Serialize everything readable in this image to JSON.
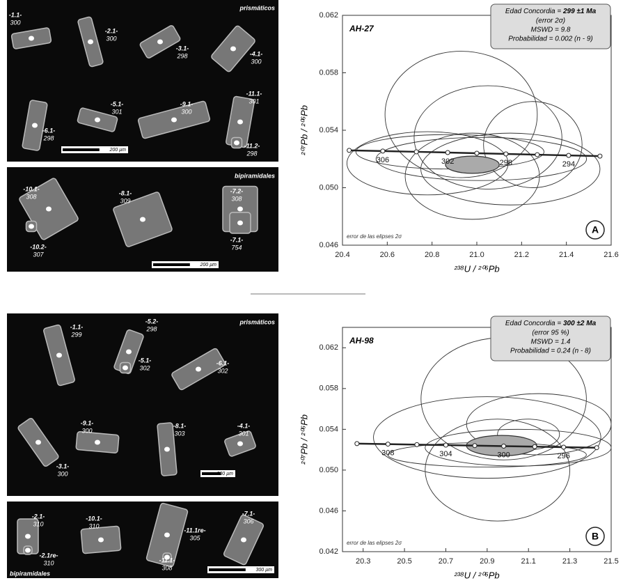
{
  "chart_data": [
    {
      "type": "concordia",
      "sample": "AH-27",
      "panel": "A",
      "note": "error de las elipses 2σ",
      "xlabel": "²³⁸U / ²⁰⁶Pb",
      "ylabel": "²⁰⁷Pb / ²⁰⁶Pb",
      "info": {
        "prefix": "Edad Concordia = ",
        "age": "299 ±1 Ma",
        "lines": [
          "(error 2σ)",
          "MSWD = 9.8",
          "Probabilidad = 0.002 (n - 9)"
        ]
      },
      "xlim": [
        20.4,
        21.6
      ],
      "ylim": [
        0.046,
        0.062
      ],
      "xticks": [
        20.4,
        20.6,
        20.8,
        {
          "value": 21,
          "label": "21.0"
        },
        21.2,
        21.4,
        21.6
      ],
      "yticks": [
        0.046,
        {
          "value": 0.05,
          "label": "0.050"
        },
        0.054,
        0.058,
        0.062
      ],
      "concordia": {
        "x": [
          20.43,
          20.58,
          20.73,
          20.87,
          21.0,
          21.13,
          21.27,
          21.41,
          21.55
        ],
        "y": [
          0.0526,
          0.05255,
          0.0525,
          0.05245,
          0.0524,
          0.05235,
          0.0523,
          0.05225,
          0.0522
        ],
        "ages": [
          null,
          306,
          null,
          302,
          null,
          298,
          null,
          294,
          null
        ]
      },
      "ellipses": {
        "cx": [
          20.93,
          21.05,
          21.02,
          20.78,
          21.15,
          20.98,
          21.25,
          20.88
        ],
        "cy": [
          0.0551,
          0.0535,
          0.052,
          0.0517,
          0.0513,
          0.0508,
          0.053,
          0.0525
        ],
        "rx": [
          0.34,
          0.33,
          0.47,
          0.36,
          0.4,
          0.3,
          0.22,
          0.42
        ],
        "ry": [
          0.0044,
          0.0036,
          0.0015,
          0.0022,
          0.0025,
          0.003,
          0.003,
          0.0012
        ]
      },
      "concordia_ellipse": {
        "cx": 20.98,
        "cy": 0.0516,
        "rx": 0.12,
        "ry": 0.0006
      }
    },
    {
      "type": "concordia",
      "sample": "AH-98",
      "panel": "B",
      "note": "error de las elipses 2σ",
      "xlabel": "²³⁸U / ²⁰⁶Pb",
      "ylabel": "²⁰⁷Pb / ²⁰⁶Pb",
      "info": {
        "prefix": "Edad Concordia = ",
        "age": "300 ±2 Ma",
        "lines": [
          "(error 95 %)",
          "MSWD = 1.4",
          "Probabilidad = 0.24 (n - 8)"
        ]
      },
      "xlim": [
        20.2,
        21.5
      ],
      "ylim": [
        0.042,
        0.064
      ],
      "xticks": [
        20.3,
        20.5,
        20.7,
        20.9,
        21.1,
        21.3,
        21.5
      ],
      "yticks": [
        0.042,
        0.046,
        {
          "value": 0.05,
          "label": "0.050"
        },
        0.054,
        0.058,
        0.062
      ],
      "concordia": {
        "x": [
          20.27,
          20.42,
          20.56,
          20.7,
          20.84,
          20.98,
          21.13,
          21.27,
          21.43
        ],
        "y": [
          0.0526,
          0.05255,
          0.0525,
          0.05245,
          0.0524,
          0.05235,
          0.0523,
          0.05225,
          0.0522
        ],
        "ages": [
          null,
          308,
          null,
          304,
          null,
          300,
          null,
          296,
          null
        ]
      },
      "ellipses": {
        "cx": [
          20.98,
          20.9,
          21.15,
          21.05,
          20.95,
          21.1,
          20.9
        ],
        "cy": [
          0.057,
          0.0532,
          0.0545,
          0.0522,
          0.05,
          0.0535,
          0.0515
        ],
        "rx": [
          0.4,
          0.55,
          0.35,
          0.45,
          0.35,
          0.15,
          0.48
        ],
        "ry": [
          0.006,
          0.004,
          0.003,
          0.0018,
          0.005,
          0.0015,
          0.0012
        ]
      },
      "concordia_ellipse": {
        "cx": 20.97,
        "cy": 0.0524,
        "rx": 0.17,
        "ry": 0.001
      }
    }
  ],
  "images": [
    {
      "title": "prismáticos",
      "scale": "200 µm",
      "grains": [
        {
          "label": "-1.1-",
          "age": 300
        },
        {
          "label": "-2.1-",
          "age": 300
        },
        {
          "label": "-3.1-",
          "age": 298
        },
        {
          "label": "-4.1-",
          "age": 300
        },
        {
          "label": "-5.1-",
          "age": 301
        },
        {
          "label": "-6.1-",
          "age": 298
        },
        {
          "label": "-9.1-",
          "age": 300
        },
        {
          "label": "-11.1-",
          "age": 301
        },
        {
          "label": "-11.2-",
          "age": 298
        }
      ]
    },
    {
      "title": "bipiramidales",
      "scale": "200 µm",
      "grains": [
        {
          "label": "-10.1-",
          "age": 308
        },
        {
          "label": "-8.1-",
          "age": 309
        },
        {
          "label": "-7.2-",
          "age": 308
        },
        {
          "label": "-10.2-",
          "age": 307
        },
        {
          "label": "-7.1-",
          "age": 754
        }
      ]
    },
    {
      "title": "prismáticos",
      "scale": "200 µm",
      "grains": [
        {
          "label": "-1.1-",
          "age": 299
        },
        {
          "label": "-5.2-",
          "age": 298
        },
        {
          "label": "-5.1-",
          "age": 302
        },
        {
          "label": "-6.1-",
          "age": 302
        },
        {
          "label": "-9.1-",
          "age": 300
        },
        {
          "label": "-8.1-",
          "age": 303
        },
        {
          "label": "-4.1-",
          "age": 301
        },
        {
          "label": "-3.1-",
          "age": 300
        }
      ]
    },
    {
      "title": "bipiramidales",
      "scale": "300 µm",
      "grains": [
        {
          "label": "-2.1-",
          "age": 310
        },
        {
          "label": "-2.1re-",
          "age": 310
        },
        {
          "label": "-10.1-",
          "age": 310
        },
        {
          "label": "-11.1re-",
          "age": 305
        },
        {
          "label": "-11.1-",
          "age": 308
        },
        {
          "label": "-7.1-",
          "age": 306
        }
      ]
    }
  ]
}
